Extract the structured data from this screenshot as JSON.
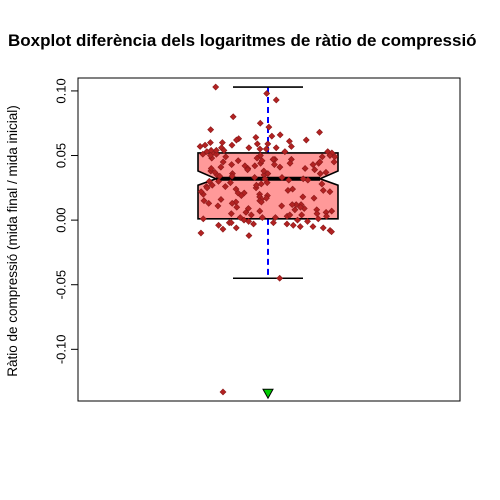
{
  "chart_data": {
    "type": "boxplot",
    "title": "Boxplot diferència dels logaritmes de ràtio de compressió",
    "xlabel": "",
    "ylabel": "Ràtio de compressió (mida final / mida inicial)",
    "ylim": [
      -0.14,
      0.11
    ],
    "yticks": [
      -0.1,
      -0.05,
      0.0,
      0.05,
      0.1
    ],
    "ytick_labels": [
      "-0.10",
      "-0.05",
      "0.00",
      "0.05",
      "0.10"
    ],
    "grid": false,
    "notched": true,
    "box": {
      "q1": 0.001,
      "median": 0.032,
      "q3": 0.052,
      "notch_low": 0.027,
      "notch_high": 0.038,
      "whisker_low": -0.045,
      "whisker_high": 0.103
    },
    "outliers": [
      -0.133
    ],
    "mean_marker": -0.134,
    "colors": {
      "box_fill": "#ff9999",
      "box_border": "#000000",
      "whisker_line": "#0000ff",
      "points_fill": "#b22222",
      "points_border": "#8b1a1a",
      "mean_marker": "#00cc00"
    },
    "jitter_points": [
      0.098,
      0.093,
      0.103,
      0.08,
      0.075,
      0.072,
      0.07,
      0.068,
      0.066,
      0.064,
      0.063,
      0.062,
      0.061,
      0.06,
      0.059,
      0.058,
      0.057,
      0.056,
      0.056,
      0.055,
      0.054,
      0.053,
      0.053,
      0.052,
      0.051,
      0.05,
      0.05,
      0.049,
      0.048,
      0.047,
      0.047,
      0.046,
      0.045,
      0.045,
      0.044,
      0.043,
      0.043,
      0.042,
      0.041,
      0.04,
      0.04,
      0.039,
      0.038,
      0.037,
      0.036,
      0.036,
      0.035,
      0.034,
      0.033,
      0.033,
      0.032,
      0.031,
      0.03,
      0.029,
      0.028,
      0.027,
      0.026,
      0.025,
      0.024,
      0.023,
      0.022,
      0.021,
      0.02,
      0.019,
      0.018,
      0.017,
      0.016,
      0.015,
      0.014,
      0.013,
      0.012,
      0.011,
      0.01,
      0.009,
      0.008,
      0.007,
      0.006,
      0.005,
      0.004,
      0.003,
      0.002,
      0.001,
      0.0,
      -0.001,
      -0.002,
      -0.003,
      -0.004,
      -0.005,
      -0.006,
      -0.008,
      -0.01,
      -0.012,
      -0.045,
      0.055,
      0.052,
      0.049,
      0.046,
      0.044,
      0.041,
      0.038,
      0.035,
      0.031,
      0.028,
      0.024,
      0.02,
      0.016,
      0.012,
      0.008,
      0.004,
      0.001,
      -0.002,
      -0.005,
      -0.007,
      0.058,
      0.054,
      0.051,
      0.047,
      0.043,
      0.039,
      0.034,
      0.029,
      0.025,
      0.021,
      0.017,
      0.013,
      0.009,
      0.005,
      0.002,
      -0.001,
      -0.004,
      0.06,
      0.057,
      0.053,
      0.048,
      0.042,
      0.037,
      0.032,
      0.027,
      0.022,
      0.018,
      0.014,
      0.01,
      0.006,
      0.003,
      0.0,
      -0.003,
      0.062,
      0.056,
      0.05,
      0.045,
      0.04,
      0.03,
      0.026,
      0.019,
      0.015,
      0.011,
      0.007,
      0.004,
      -0.002,
      -0.006,
      0.065,
      0.059,
      0.054,
      0.049,
      0.044,
      0.036,
      0.023,
      0.012,
      0.002,
      -0.009
    ]
  }
}
